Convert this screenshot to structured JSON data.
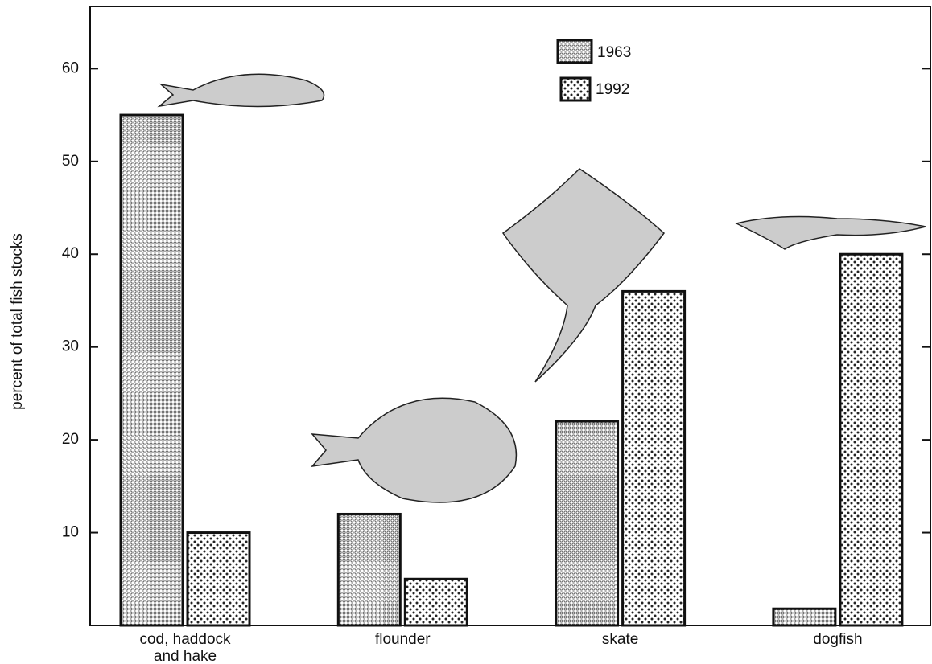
{
  "chart_data": {
    "type": "bar",
    "y_label": "percent of total fish stocks",
    "categories": [
      "cod, haddock\nand hake",
      "flounder",
      "skate",
      "dogfish"
    ],
    "series": [
      {
        "name": "1963",
        "values": [
          55,
          12,
          22,
          1.8
        ]
      },
      {
        "name": "1992",
        "values": [
          10,
          5,
          36,
          40
        ]
      }
    ],
    "ylim": [
      0,
      66.7
    ],
    "yticks": [
      10,
      20,
      30,
      40,
      50,
      60
    ]
  }
}
